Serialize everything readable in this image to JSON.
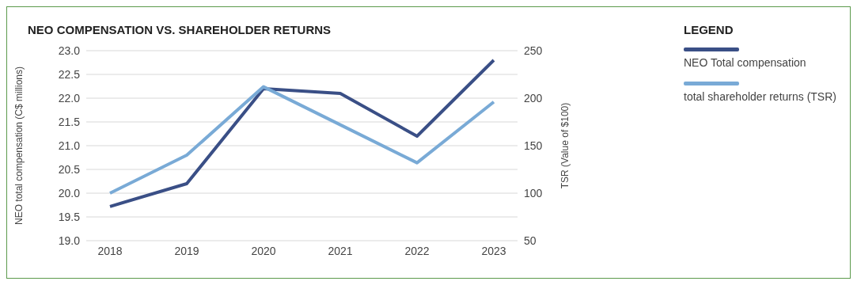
{
  "chart_data": {
    "type": "line",
    "title": "NEO COMPENSATION VS. SHAREHOLDER RETURNS",
    "categories": [
      "2018",
      "2019",
      "2020",
      "2021",
      "2022",
      "2023"
    ],
    "series": [
      {
        "name": "NEO Total compensation",
        "color": "#3a4f86",
        "values": [
          19.72,
          20.2,
          22.2,
          22.1,
          21.2,
          22.8
        ]
      },
      {
        "name": "total shareholder returns (TSR)",
        "color": "#79aad6",
        "axis": "y2",
        "values": [
          100,
          140,
          212,
          172,
          132,
          196
        ]
      }
    ],
    "ylabel": "NEO total compensation (C$ millions)",
    "y2label": "TSR (Value of $100)",
    "ylim": [
      19,
      23
    ],
    "yticks": [
      {
        "value": 19,
        "label": "19.0"
      },
      {
        "value": 19.5,
        "label": "19.5"
      },
      {
        "value": 20,
        "label": "20.0"
      },
      {
        "value": 20.5,
        "label": "20.5"
      },
      {
        "value": 21,
        "label": "21.0"
      },
      {
        "value": 21.5,
        "label": "21.5"
      },
      {
        "value": 22,
        "label": "22.0"
      },
      {
        "value": 22.5,
        "label": "22.5"
      },
      {
        "value": 23,
        "label": "23.0"
      }
    ],
    "y2lim": [
      50,
      250
    ],
    "y2ticks": [
      50,
      100,
      150,
      200,
      250
    ],
    "grid": "y",
    "legend": "right",
    "legend_title": "LEGEND"
  }
}
